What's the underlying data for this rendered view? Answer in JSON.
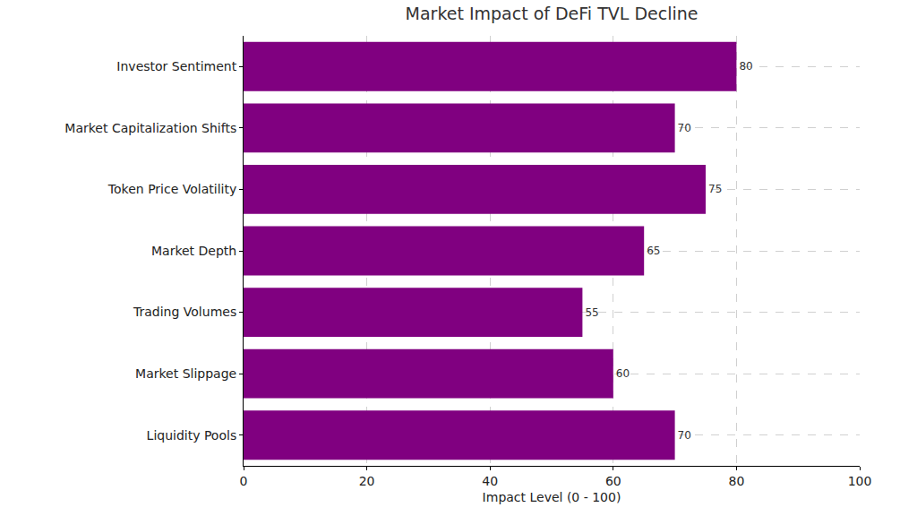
{
  "chart_data": {
    "type": "bar",
    "orientation": "horizontal",
    "title": "Market Impact of DeFi TVL Decline",
    "x_label": "Impact Level (0 - 100)",
    "categories": [
      "Liquidity Pools",
      "Market Slippage",
      "Trading Volumes",
      "Market Depth",
      "Token Price Volatility",
      "Market Capitalization Shifts",
      "Investor Sentiment"
    ],
    "values": [
      70,
      60,
      55,
      65,
      75,
      70,
      80
    ],
    "color": "#800080",
    "xlim": [
      0,
      100
    ],
    "xticks": [
      0,
      20,
      40,
      60,
      80,
      100
    ],
    "grid": true,
    "data_labels": true
  }
}
